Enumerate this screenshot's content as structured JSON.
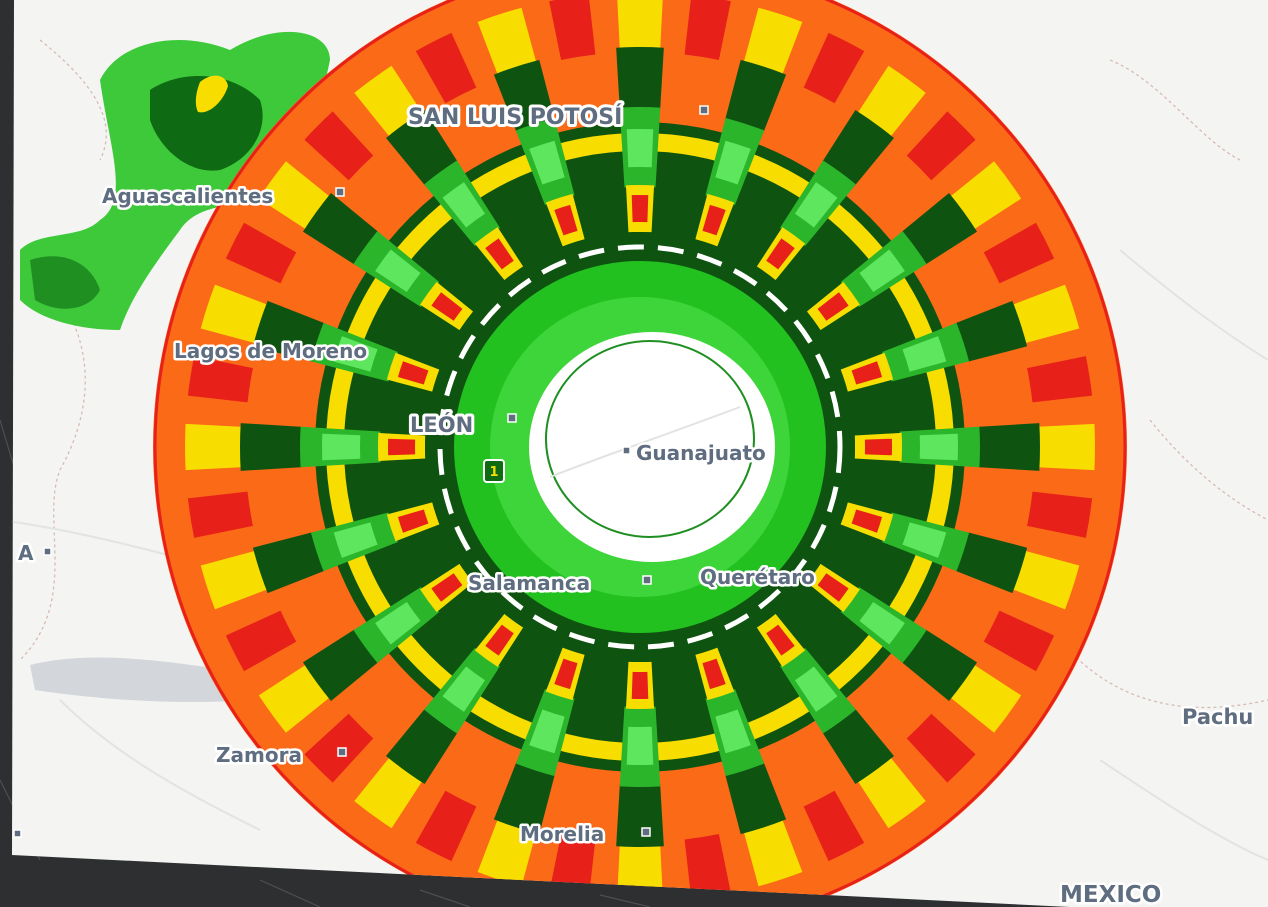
{
  "map": {
    "colors": {
      "frame": "#2e2f31",
      "base_map": "#f4f5f3",
      "radar_far": "#fb6a17",
      "radar_red": "#e8201a",
      "radar_yellow": "#f7dd00",
      "radar_dark_green": "#0e5410",
      "radar_mid_green": "#2bb52b",
      "radar_light_green": "#5ee65e",
      "radar_core": "#22c11f",
      "label_text": "#5f6d80"
    },
    "marker": {
      "label": "1"
    },
    "cities": [
      {
        "id": "san-luis-potosi",
        "name": "SAN LUIS POTOSÍ"
      },
      {
        "id": "aguascalientes",
        "name": "Aguascalientes"
      },
      {
        "id": "lagos-de-moreno",
        "name": "Lagos de Moreno"
      },
      {
        "id": "leon",
        "name": "LEÓN"
      },
      {
        "id": "guanajuato",
        "name": "Guanajuato"
      },
      {
        "id": "salamanca",
        "name": "Salamanca"
      },
      {
        "id": "queretaro",
        "name": "Querétaro"
      },
      {
        "id": "zamora",
        "name": "Zamora"
      },
      {
        "id": "morelia",
        "name": "Morelia"
      },
      {
        "id": "pachuca-partial",
        "name": "Pachu"
      },
      {
        "id": "mexico",
        "name": "MEXICO"
      },
      {
        "id": "edge-west",
        "name": "A"
      }
    ]
  }
}
